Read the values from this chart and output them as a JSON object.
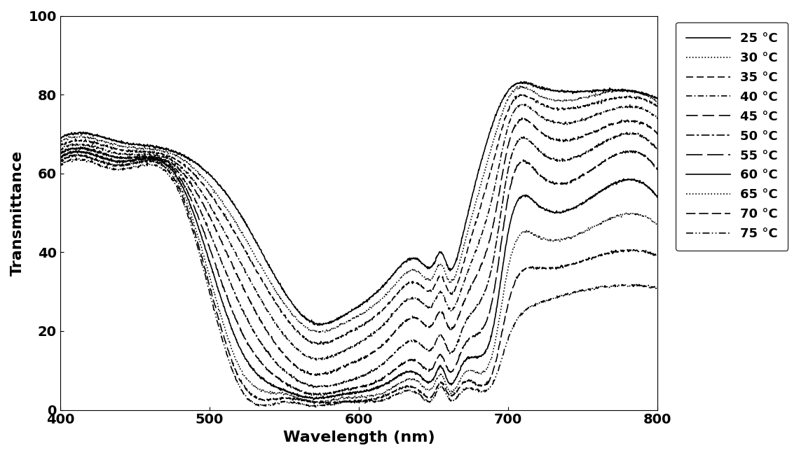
{
  "xlabel": "Wavelength (nm)",
  "ylabel": "Transmittance",
  "xlim": [
    400,
    800
  ],
  "ylim": [
    0,
    100
  ],
  "xticks": [
    400,
    500,
    600,
    700,
    800
  ],
  "yticks": [
    0,
    20,
    40,
    60,
    80,
    100
  ],
  "temperatures": [
    25,
    30,
    35,
    40,
    45,
    50,
    55,
    60,
    65,
    70,
    75
  ],
  "curve_keypoints": [
    [
      400,
      69,
      420,
      70,
      440,
      68,
      480,
      65,
      520,
      50,
      550,
      30,
      570,
      22,
      590,
      24,
      620,
      33,
      640,
      38,
      650,
      37,
      655,
      40,
      660,
      36,
      670,
      45,
      690,
      73,
      700,
      81,
      720,
      82,
      760,
      81,
      800,
      79
    ],
    [
      400,
      68,
      420,
      69,
      440,
      67,
      480,
      64,
      520,
      46,
      550,
      27,
      570,
      20,
      590,
      22,
      620,
      30,
      640,
      35,
      650,
      34,
      655,
      37,
      660,
      33,
      670,
      41,
      690,
      68,
      700,
      79,
      720,
      80,
      760,
      80,
      800,
      78
    ],
    [
      400,
      67,
      420,
      68,
      440,
      66,
      480,
      63,
      520,
      43,
      550,
      24,
      570,
      17,
      590,
      19,
      620,
      27,
      640,
      32,
      650,
      31,
      655,
      34,
      660,
      30,
      670,
      37,
      690,
      63,
      700,
      76,
      720,
      78,
      760,
      78,
      800,
      77
    ],
    [
      400,
      66,
      420,
      67,
      440,
      65,
      480,
      62,
      520,
      38,
      550,
      19,
      570,
      13,
      590,
      15,
      620,
      23,
      640,
      28,
      650,
      27,
      655,
      30,
      660,
      26,
      670,
      32,
      690,
      55,
      700,
      72,
      720,
      75,
      760,
      75,
      800,
      74
    ],
    [
      400,
      65,
      420,
      66,
      440,
      64,
      480,
      61,
      520,
      33,
      550,
      14,
      570,
      9,
      590,
      11,
      620,
      18,
      640,
      23,
      650,
      22,
      655,
      25,
      660,
      21,
      670,
      27,
      690,
      47,
      700,
      67,
      720,
      71,
      760,
      71,
      800,
      70
    ],
    [
      400,
      65,
      420,
      66,
      440,
      64,
      480,
      60,
      520,
      27,
      550,
      10,
      570,
      6,
      590,
      7,
      620,
      13,
      640,
      17,
      650,
      16,
      655,
      19,
      660,
      15,
      670,
      21,
      690,
      38,
      700,
      61,
      720,
      66,
      760,
      67,
      800,
      66
    ],
    [
      400,
      64,
      420,
      65,
      440,
      63,
      480,
      59,
      520,
      21,
      550,
      7,
      570,
      4,
      590,
      5,
      620,
      9,
      640,
      12,
      650,
      11,
      655,
      14,
      660,
      10,
      670,
      16,
      690,
      29,
      700,
      54,
      720,
      60,
      760,
      62,
      800,
      61
    ],
    [
      400,
      64,
      420,
      65,
      440,
      63,
      480,
      58,
      520,
      16,
      550,
      5,
      570,
      3,
      590,
      4,
      620,
      7,
      640,
      9,
      650,
      8,
      655,
      11,
      660,
      7,
      670,
      12,
      690,
      21,
      700,
      45,
      720,
      52,
      760,
      55,
      800,
      54
    ],
    [
      400,
      63,
      420,
      64,
      440,
      62,
      480,
      57,
      520,
      11,
      550,
      4,
      570,
      2,
      590,
      3,
      620,
      5,
      640,
      7,
      650,
      6,
      655,
      9,
      660,
      5,
      670,
      9,
      690,
      15,
      700,
      36,
      720,
      44,
      760,
      47,
      800,
      47
    ],
    [
      400,
      63,
      420,
      64,
      440,
      62,
      480,
      56,
      520,
      8,
      550,
      3,
      570,
      2,
      590,
      2,
      620,
      4,
      640,
      5,
      650,
      4,
      655,
      7,
      660,
      4,
      670,
      7,
      690,
      10,
      700,
      27,
      720,
      36,
      760,
      39,
      800,
      39
    ],
    [
      400,
      62,
      420,
      63,
      440,
      61,
      480,
      55,
      520,
      6,
      550,
      2,
      570,
      1,
      590,
      2,
      620,
      3,
      640,
      4,
      650,
      3,
      655,
      6,
      660,
      3,
      670,
      5,
      690,
      7,
      700,
      18,
      720,
      27,
      760,
      31,
      800,
      31
    ]
  ],
  "linestyle_defs": [
    [
      "-",
      null
    ],
    [
      ":",
      null
    ],
    [
      "--",
      [
        6,
        3
      ]
    ],
    [
      "-.",
      [
        5,
        2,
        1,
        2
      ]
    ],
    [
      "--",
      [
        10,
        4
      ]
    ],
    [
      "-.",
      [
        7,
        2,
        2,
        2
      ]
    ],
    [
      "--",
      [
        14,
        4
      ]
    ],
    [
      "-",
      null
    ],
    [
      ":",
      null
    ],
    [
      "--",
      [
        8,
        3
      ]
    ],
    [
      "-.",
      [
        6,
        2,
        1,
        2,
        1,
        2
      ]
    ]
  ],
  "lw": 1.2,
  "legend_fontsize": 13,
  "axis_fontsize": 16,
  "tick_fontsize": 14
}
